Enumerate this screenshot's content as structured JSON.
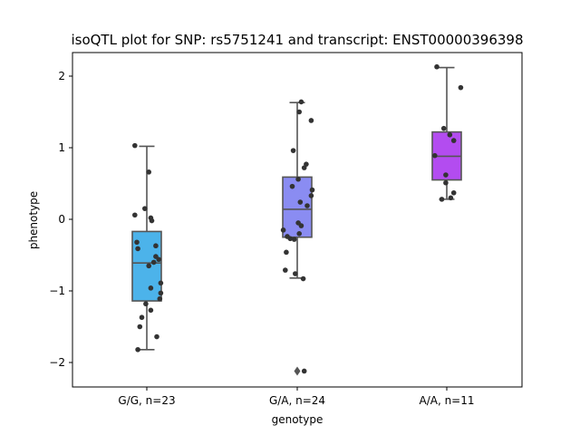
{
  "chart_data": {
    "type": "box",
    "title": "isoQTL plot for SNP: rs5751241 and transcript: ENST00000396398",
    "xlabel": "genotype",
    "ylabel": "phenotype",
    "ylim": [
      -2.32,
      2.32
    ],
    "yticks": [
      -2,
      -1,
      0,
      1,
      2
    ],
    "yticklabels": [
      "−2",
      "−1",
      "0",
      "1",
      "2"
    ],
    "grid": false,
    "categories": [
      "G/G, n=23",
      "G/A, n=24",
      "A/A, n=11"
    ],
    "colors": [
      "#4cb3ea",
      "#8a8cf2",
      "#b34cf0"
    ],
    "boxes": [
      {
        "category": "G/G, n=23",
        "whisker_low": -1.82,
        "q1": -1.14,
        "median": -0.61,
        "q3": -0.17,
        "whisker_high": 1.02,
        "fliers": []
      },
      {
        "category": "G/A, n=24",
        "whisker_low": -0.82,
        "q1": -0.25,
        "median": 0.14,
        "q3": 0.59,
        "whisker_high": 1.63,
        "fliers": [
          -2.12
        ]
      },
      {
        "category": "A/A, n=11",
        "whisker_low": 0.28,
        "q1": 0.55,
        "median": 0.88,
        "q3": 1.22,
        "whisker_high": 2.12,
        "fliers": []
      }
    ],
    "points": [
      [
        {
          "jitter": -0.12,
          "y": 1.03
        },
        {
          "jitter": 0.02,
          "y": 0.66
        },
        {
          "jitter": -0.12,
          "y": 0.06
        },
        {
          "jitter": -0.02,
          "y": 0.15
        },
        {
          "jitter": 0.04,
          "y": 0.02
        },
        {
          "jitter": 0.05,
          "y": -0.02
        },
        {
          "jitter": -0.1,
          "y": -0.32
        },
        {
          "jitter": -0.09,
          "y": -0.41
        },
        {
          "jitter": 0.09,
          "y": -0.37
        },
        {
          "jitter": 0.09,
          "y": -0.52
        },
        {
          "jitter": 0.12,
          "y": -0.56
        },
        {
          "jitter": 0.07,
          "y": -0.6
        },
        {
          "jitter": 0.02,
          "y": -0.65
        },
        {
          "jitter": 0.14,
          "y": -0.89
        },
        {
          "jitter": 0.04,
          "y": -0.96
        },
        {
          "jitter": 0.14,
          "y": -1.03
        },
        {
          "jitter": 0.13,
          "y": -1.11
        },
        {
          "jitter": -0.01,
          "y": -1.18
        },
        {
          "jitter": 0.04,
          "y": -1.27
        },
        {
          "jitter": -0.05,
          "y": -1.37
        },
        {
          "jitter": -0.07,
          "y": -1.5
        },
        {
          "jitter": 0.1,
          "y": -1.64
        },
        {
          "jitter": -0.09,
          "y": -1.82
        }
      ],
      [
        {
          "jitter": 0.04,
          "y": 1.64
        },
        {
          "jitter": 0.02,
          "y": 1.5
        },
        {
          "jitter": 0.14,
          "y": 1.38
        },
        {
          "jitter": -0.04,
          "y": 0.96
        },
        {
          "jitter": 0.09,
          "y": 0.77
        },
        {
          "jitter": 0.07,
          "y": 0.72
        },
        {
          "jitter": 0.01,
          "y": 0.56
        },
        {
          "jitter": -0.05,
          "y": 0.46
        },
        {
          "jitter": 0.15,
          "y": 0.41
        },
        {
          "jitter": 0.14,
          "y": 0.33
        },
        {
          "jitter": 0.03,
          "y": 0.24
        },
        {
          "jitter": 0.1,
          "y": 0.19
        },
        {
          "jitter": 0.01,
          "y": -0.05
        },
        {
          "jitter": 0.04,
          "y": -0.09
        },
        {
          "jitter": -0.14,
          "y": -0.15
        },
        {
          "jitter": 0.02,
          "y": -0.2
        },
        {
          "jitter": -0.1,
          "y": -0.24
        },
        {
          "jitter": -0.07,
          "y": -0.27
        },
        {
          "jitter": -0.03,
          "y": -0.28
        },
        {
          "jitter": -0.11,
          "y": -0.46
        },
        {
          "jitter": -0.12,
          "y": -0.71
        },
        {
          "jitter": -0.02,
          "y": -0.76
        },
        {
          "jitter": 0.06,
          "y": -0.83
        },
        {
          "jitter": 0.07,
          "y": -2.12
        }
      ],
      [
        {
          "jitter": -0.1,
          "y": 2.13
        },
        {
          "jitter": 0.14,
          "y": 1.84
        },
        {
          "jitter": -0.03,
          "y": 1.27
        },
        {
          "jitter": 0.03,
          "y": 1.18
        },
        {
          "jitter": 0.07,
          "y": 1.1
        },
        {
          "jitter": -0.12,
          "y": 0.89
        },
        {
          "jitter": -0.01,
          "y": 0.62
        },
        {
          "jitter": -0.01,
          "y": 0.51
        },
        {
          "jitter": 0.07,
          "y": 0.37
        },
        {
          "jitter": 0.04,
          "y": 0.3
        },
        {
          "jitter": -0.05,
          "y": 0.28
        }
      ]
    ]
  }
}
